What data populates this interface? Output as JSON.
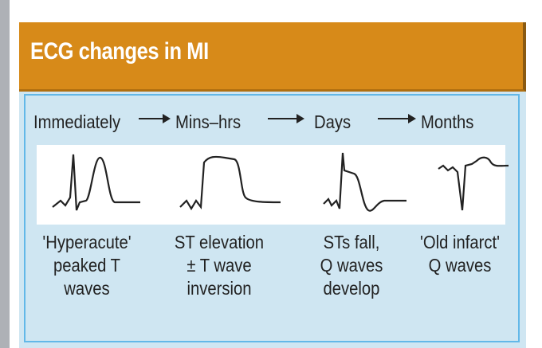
{
  "header": {
    "title": "ECG changes in MI"
  },
  "timeline": {
    "stages": [
      "Immediately",
      "Mins–hrs",
      "Days",
      "Months"
    ]
  },
  "stages": [
    {
      "lines": [
        "'Hyperacute'",
        "peaked T",
        "waves"
      ]
    },
    {
      "lines": [
        "ST elevation",
        "± T wave",
        "inversion"
      ]
    },
    {
      "lines": [
        "STs fall,",
        "Q waves",
        "develop"
      ]
    },
    {
      "lines": [
        "'Old infarct'",
        "Q waves"
      ]
    }
  ]
}
